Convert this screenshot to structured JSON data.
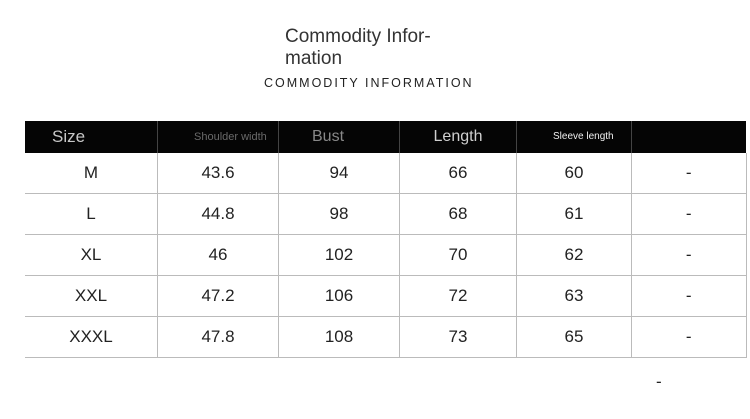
{
  "header": {
    "title": "Commodity Infor-\nmation",
    "subtitle": "COMMODITY INFORMATION"
  },
  "table": {
    "columns": [
      "Size",
      "Shoulder width",
      "Bust",
      "Length",
      "Sleeve length",
      ""
    ],
    "rows": [
      [
        "M",
        "43.6",
        "94",
        "66",
        "60",
        "-"
      ],
      [
        "L",
        "44.8",
        "98",
        "68",
        "61",
        "-"
      ],
      [
        "XL",
        "46",
        "102",
        "70",
        "62",
        "-"
      ],
      [
        "XXL",
        "47.2",
        "106",
        "72",
        "63",
        "-"
      ],
      [
        "XXXL",
        "47.8",
        "108",
        "73",
        "65",
        "-"
      ]
    ],
    "extra_cell": "-"
  },
  "colors": {
    "header_bg": "#050505",
    "grid": "#bbbbbb"
  }
}
